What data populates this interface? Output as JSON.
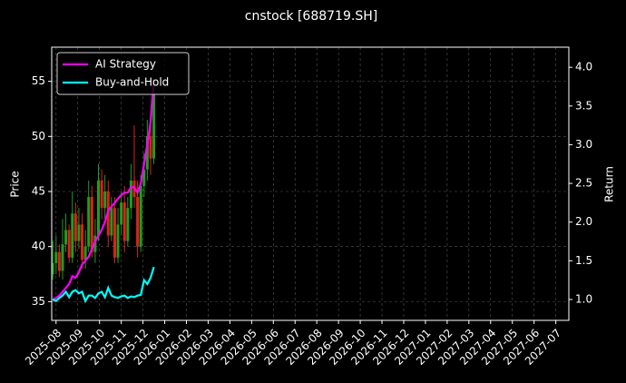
{
  "chart_data": {
    "type": "candlestick",
    "title": "cnstock [688719.SH]",
    "y_label": "Price",
    "y2_label": "Return",
    "xlim": [
      -0.2,
      23.6
    ],
    "xticks": [
      {
        "value": 0,
        "label": "2025-08"
      },
      {
        "value": 1,
        "label": "2025-09"
      },
      {
        "value": 2,
        "label": "2025-10"
      },
      {
        "value": 3,
        "label": "2025-11"
      },
      {
        "value": 4,
        "label": "2025-12"
      },
      {
        "value": 5,
        "label": "2026-01"
      },
      {
        "value": 6,
        "label": "2026-02"
      },
      {
        "value": 7,
        "label": "2026-03"
      },
      {
        "value": 8,
        "label": "2026-04"
      },
      {
        "value": 9,
        "label": "2026-05"
      },
      {
        "value": 10,
        "label": "2026-06"
      },
      {
        "value": 11,
        "label": "2026-07"
      },
      {
        "value": 12,
        "label": "2026-08"
      },
      {
        "value": 13,
        "label": "2026-09"
      },
      {
        "value": 14,
        "label": "2026-10"
      },
      {
        "value": 15,
        "label": "2026-11"
      },
      {
        "value": 16,
        "label": "2026-12"
      },
      {
        "value": 17,
        "label": "2027-01"
      },
      {
        "value": 18,
        "label": "2027-02"
      },
      {
        "value": 19,
        "label": "2027-03"
      },
      {
        "value": 20,
        "label": "2027-04"
      },
      {
        "value": 21,
        "label": "2027-05"
      },
      {
        "value": 22,
        "label": "2027-06"
      },
      {
        "value": 23,
        "label": "2027-07"
      }
    ],
    "ylim": [
      33.3,
      58.1
    ],
    "yticks": [
      35,
      40,
      45,
      50,
      55
    ],
    "y2lim": [
      0.73,
      4.26
    ],
    "y2ticks": [
      {
        "value": 1,
        "label": "1.0"
      },
      {
        "value": 1.5,
        "label": "1.5"
      },
      {
        "value": 2,
        "label": "2.0"
      },
      {
        "value": 2.5,
        "label": "2.5"
      },
      {
        "value": 3,
        "label": "3.0"
      },
      {
        "value": 3.5,
        "label": "3.5"
      },
      {
        "value": 4,
        "label": "4.0"
      }
    ],
    "grid": true,
    "legend": "upper-left",
    "up_color": "#1f9e1f",
    "down_color": "#e0201a",
    "x": [
      -0.15,
      0,
      0.15,
      0.3,
      0.45,
      0.6,
      0.75,
      0.9,
      1.05,
      1.2,
      1.35,
      1.5,
      1.65,
      1.8,
      1.95,
      2.1,
      2.25,
      2.4,
      2.55,
      2.7,
      2.85,
      3,
      3.15,
      3.3,
      3.45,
      3.6,
      3.75,
      3.9,
      4.05,
      4.2,
      4.35,
      4.5
    ],
    "open": [
      37.5,
      38.5,
      39.5,
      37.8,
      40.2,
      41.5,
      39.0,
      43.0,
      40.5,
      42.0,
      38.8,
      40.0,
      44.5,
      39.5,
      41.0,
      46.0,
      43.5,
      45.0,
      41.0,
      43.5,
      39.0,
      42.0,
      44.0,
      40.5,
      43.5,
      46.0,
      44.5,
      40.0,
      45.5,
      47.0,
      50.0,
      48.0
    ],
    "high": [
      40.5,
      41.0,
      40.2,
      42.5,
      43.0,
      42.0,
      45.0,
      44.0,
      43.5,
      43.0,
      41.5,
      46.0,
      45.5,
      42.5,
      47.5,
      47.0,
      46.5,
      46.0,
      44.5,
      44.5,
      43.5,
      45.0,
      45.5,
      44.5,
      47.5,
      51.0,
      46.0,
      46.5,
      48.5,
      51.5,
      52.0,
      55.0
    ],
    "low": [
      37.0,
      37.5,
      37.2,
      37.0,
      39.5,
      38.5,
      38.5,
      39.5,
      39.8,
      38.0,
      38.0,
      39.5,
      39.0,
      38.5,
      40.5,
      42.5,
      42.5,
      40.0,
      40.5,
      38.5,
      38.5,
      41.0,
      39.5,
      40.0,
      42.5,
      43.5,
      39.0,
      39.5,
      44.5,
      46.0,
      46.5,
      47.5
    ],
    "close": [
      38.5,
      39.5,
      37.8,
      40.2,
      41.5,
      39.0,
      43.0,
      40.5,
      42.0,
      38.8,
      40.0,
      44.5,
      39.5,
      41.0,
      46.0,
      43.5,
      45.0,
      41.0,
      43.5,
      39.0,
      42.0,
      44.0,
      40.5,
      43.5,
      46.0,
      44.5,
      40.0,
      45.5,
      47.0,
      50.0,
      48.0,
      54.0
    ],
    "series": [
      {
        "name": "AI Strategy",
        "color": "#ff00ff",
        "axis": "y2",
        "values": [
          1.0,
          1.02,
          1.05,
          1.1,
          1.15,
          1.2,
          1.3,
          1.28,
          1.35,
          1.45,
          1.5,
          1.55,
          1.65,
          1.75,
          1.82,
          1.9,
          2.0,
          2.15,
          2.2,
          2.25,
          2.3,
          2.35,
          2.38,
          2.38,
          2.45,
          2.45,
          2.38,
          2.5,
          2.75,
          3.0,
          3.3,
          3.85
        ]
      },
      {
        "name": "Buy-and-Hold",
        "color": "#00ffff",
        "axis": "y2",
        "values": [
          1.0,
          0.98,
          1.02,
          1.05,
          1.1,
          1.03,
          1.1,
          1.12,
          1.08,
          1.1,
          0.98,
          1.05,
          1.05,
          1.02,
          1.08,
          1.1,
          1.03,
          1.15,
          1.05,
          1.03,
          1.02,
          1.04,
          1.05,
          1.02,
          1.04,
          1.03,
          1.05,
          1.06,
          1.25,
          1.2,
          1.28,
          1.42
        ]
      }
    ]
  }
}
